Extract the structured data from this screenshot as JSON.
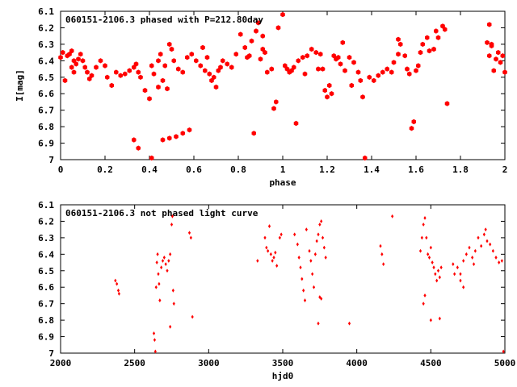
{
  "chart_data": [
    {
      "type": "scatter",
      "title": "060151-2106.3 phased with P=212.80day",
      "xlabel": "phase",
      "ylabel": "I[mag]",
      "xlim": [
        0,
        2
      ],
      "ylim": [
        6.1,
        7
      ],
      "y_inverted": true,
      "x_ticks": [
        "0",
        "0.2",
        "0.4",
        "0.6",
        "0.8",
        "1",
        "1.2",
        "1.4",
        "1.6",
        "1.8",
        "2"
      ],
      "y_ticks": [
        "6.1",
        "6.2",
        "6.3",
        "6.4",
        "6.5",
        "6.6",
        "6.7",
        "6.8",
        "6.9",
        "7"
      ],
      "marker_color": "#ff0000",
      "marker": "filled-hexagon",
      "grid": false,
      "legend": "none",
      "series": [
        {
          "points": [
            [
              0.0,
              6.38
            ],
            [
              0.01,
              6.35
            ],
            [
              0.02,
              6.52
            ],
            [
              0.03,
              6.37
            ],
            [
              0.04,
              6.36
            ],
            [
              0.05,
              6.34
            ],
            [
              0.06,
              6.4
            ],
            [
              0.07,
              6.42
            ],
            [
              0.08,
              6.39
            ],
            [
              0.09,
              6.36
            ],
            [
              0.1,
              6.4
            ],
            [
              0.11,
              6.44
            ],
            [
              0.12,
              6.47
            ],
            [
              0.13,
              6.51
            ],
            [
              0.14,
              6.49
            ],
            [
              0.16,
              6.44
            ],
            [
              0.18,
              6.4
            ],
            [
              0.2,
              6.43
            ],
            [
              0.21,
              6.5
            ],
            [
              0.23,
              6.55
            ],
            [
              0.25,
              6.47
            ],
            [
              0.27,
              6.49
            ],
            [
              0.29,
              6.48
            ],
            [
              0.31,
              6.46
            ],
            [
              0.33,
              6.44
            ],
            [
              0.34,
              6.42
            ],
            [
              0.35,
              6.47
            ],
            [
              0.36,
              6.5
            ],
            [
              0.38,
              6.58
            ],
            [
              0.4,
              6.63
            ],
            [
              0.41,
              6.43
            ],
            [
              0.42,
              6.48
            ],
            [
              0.44,
              6.56
            ],
            [
              0.46,
              6.52
            ],
            [
              0.48,
              6.57
            ],
            [
              0.33,
              6.88
            ],
            [
              0.35,
              6.93
            ],
            [
              0.41,
              6.99
            ],
            [
              0.46,
              6.88
            ],
            [
              0.49,
              6.87
            ],
            [
              0.52,
              6.86
            ],
            [
              0.55,
              6.84
            ],
            [
              0.44,
              6.4
            ],
            [
              0.45,
              6.36
            ],
            [
              0.47,
              6.43
            ],
            [
              0.49,
              6.3
            ],
            [
              0.5,
              6.33
            ],
            [
              0.51,
              6.4
            ],
            [
              0.53,
              6.45
            ],
            [
              0.55,
              6.47
            ],
            [
              0.57,
              6.38
            ],
            [
              0.59,
              6.36
            ],
            [
              0.61,
              6.4
            ],
            [
              0.63,
              6.43
            ],
            [
              0.65,
              6.46
            ],
            [
              0.67,
              6.48
            ],
            [
              0.69,
              6.5
            ],
            [
              0.71,
              6.46
            ],
            [
              0.73,
              6.4
            ],
            [
              0.75,
              6.42
            ],
            [
              0.77,
              6.44
            ],
            [
              0.79,
              6.36
            ],
            [
              0.81,
              6.24
            ],
            [
              0.83,
              6.32
            ],
            [
              0.84,
              6.38
            ],
            [
              0.86,
              6.28
            ],
            [
              0.88,
              6.22
            ],
            [
              0.89,
              6.17
            ],
            [
              0.91,
              6.25
            ],
            [
              0.92,
              6.35
            ],
            [
              0.93,
              6.47
            ],
            [
              0.95,
              6.45
            ],
            [
              0.96,
              6.69
            ],
            [
              0.97,
              6.65
            ],
            [
              0.98,
              6.2
            ],
            [
              1.0,
              6.12
            ],
            [
              1.01,
              6.43
            ],
            [
              1.02,
              6.45
            ],
            [
              1.03,
              6.47
            ],
            [
              1.04,
              6.46
            ],
            [
              1.06,
              6.78
            ],
            [
              1.07,
              6.4
            ],
            [
              1.09,
              6.38
            ],
            [
              1.11,
              6.37
            ],
            [
              1.13,
              6.33
            ],
            [
              1.15,
              6.35
            ],
            [
              1.17,
              6.36
            ],
            [
              1.18,
              6.45
            ],
            [
              1.19,
              6.58
            ],
            [
              1.2,
              6.62
            ],
            [
              1.21,
              6.55
            ],
            [
              1.22,
              6.6
            ],
            [
              1.23,
              6.37
            ],
            [
              1.24,
              6.39
            ],
            [
              1.26,
              6.42
            ],
            [
              1.28,
              6.46
            ],
            [
              1.3,
              6.38
            ],
            [
              1.32,
              6.41
            ],
            [
              1.34,
              6.47
            ],
            [
              1.35,
              6.52
            ],
            [
              1.36,
              6.62
            ],
            [
              1.37,
              6.99
            ],
            [
              1.39,
              6.5
            ],
            [
              1.41,
              6.52
            ],
            [
              1.43,
              6.49
            ],
            [
              1.45,
              6.47
            ],
            [
              1.47,
              6.45
            ],
            [
              1.49,
              6.47
            ],
            [
              1.5,
              6.41
            ],
            [
              1.52,
              6.36
            ],
            [
              1.53,
              6.3
            ],
            [
              1.55,
              6.37
            ],
            [
              1.56,
              6.45
            ],
            [
              1.57,
              6.48
            ],
            [
              1.58,
              6.81
            ],
            [
              1.59,
              6.77
            ],
            [
              1.6,
              6.46
            ],
            [
              1.61,
              6.43
            ],
            [
              1.62,
              6.35
            ],
            [
              1.63,
              6.3
            ],
            [
              1.65,
              6.26
            ],
            [
              1.66,
              6.34
            ],
            [
              1.68,
              6.33
            ],
            [
              1.69,
              6.22
            ],
            [
              1.7,
              6.26
            ],
            [
              1.72,
              6.19
            ],
            [
              1.73,
              6.21
            ],
            [
              1.74,
              6.66
            ],
            [
              0.87,
              6.84
            ],
            [
              0.58,
              6.82
            ],
            [
              1.52,
              6.27
            ],
            [
              1.92,
              6.29
            ],
            [
              1.93,
              6.18
            ],
            [
              1.94,
              6.3
            ],
            [
              1.95,
              6.46
            ],
            [
              1.96,
              6.39
            ],
            [
              1.97,
              6.35
            ],
            [
              1.98,
              6.41
            ],
            [
              1.99,
              6.37
            ],
            [
              2.0,
              6.47
            ],
            [
              1.93,
              6.37
            ],
            [
              1.94,
              6.31
            ],
            [
              0.05,
              6.44
            ],
            [
              0.06,
              6.47
            ],
            [
              0.9,
              6.39
            ],
            [
              0.91,
              6.33
            ],
            [
              1.1,
              6.48
            ],
            [
              1.25,
              6.38
            ],
            [
              1.27,
              6.29
            ],
            [
              1.31,
              6.55
            ],
            [
              1.05,
              6.44
            ],
            [
              1.16,
              6.45
            ],
            [
              0.64,
              6.32
            ],
            [
              0.66,
              6.38
            ],
            [
              0.68,
              6.52
            ],
            [
              0.7,
              6.56
            ],
            [
              0.72,
              6.44
            ],
            [
              0.85,
              6.37
            ]
          ]
        }
      ]
    },
    {
      "type": "scatter",
      "title": "060151-2106.3 not phased light curve",
      "xlabel": "hjd0",
      "ylabel": "",
      "xlim": [
        2000,
        5000
      ],
      "ylim": [
        6.1,
        7
      ],
      "y_inverted": true,
      "x_ticks": [
        "2000",
        "2500",
        "3000",
        "3500",
        "4000",
        "4500",
        "5000"
      ],
      "y_ticks": [
        "6.1",
        "6.2",
        "6.3",
        "6.4",
        "6.5",
        "6.6",
        "6.7",
        "6.8",
        "6.9",
        "7"
      ],
      "marker_color": "#ff0000",
      "marker": "small-diamond",
      "grid": false,
      "legend": "none",
      "series": [
        {
          "points": [
            [
              2370,
              6.56
            ],
            [
              2380,
              6.58
            ],
            [
              2390,
              6.62
            ],
            [
              2395,
              6.64
            ],
            [
              2630,
              6.88
            ],
            [
              2635,
              6.92
            ],
            [
              2640,
              6.99
            ],
            [
              2645,
              6.6
            ],
            [
              2650,
              6.45
            ],
            [
              2655,
              6.4
            ],
            [
              2660,
              6.52
            ],
            [
              2665,
              6.58
            ],
            [
              2670,
              6.68
            ],
            [
              2680,
              6.48
            ],
            [
              2690,
              6.44
            ],
            [
              2700,
              6.42
            ],
            [
              2710,
              6.46
            ],
            [
              2720,
              6.5
            ],
            [
              2730,
              6.44
            ],
            [
              2740,
              6.4
            ],
            [
              2750,
              6.22
            ],
            [
              2755,
              6.17
            ],
            [
              2760,
              6.62
            ],
            [
              2765,
              6.7
            ],
            [
              2740,
              6.84
            ],
            [
              2870,
              6.27
            ],
            [
              2880,
              6.3
            ],
            [
              2890,
              6.78
            ],
            [
              3330,
              6.44
            ],
            [
              3380,
              6.3
            ],
            [
              3390,
              6.36
            ],
            [
              3400,
              6.38
            ],
            [
              3410,
              6.23
            ],
            [
              3420,
              6.4
            ],
            [
              3430,
              6.44
            ],
            [
              3440,
              6.42
            ],
            [
              3450,
              6.39
            ],
            [
              3460,
              6.47
            ],
            [
              3480,
              6.3
            ],
            [
              3490,
              6.28
            ],
            [
              3580,
              6.28
            ],
            [
              3600,
              6.34
            ],
            [
              3610,
              6.42
            ],
            [
              3620,
              6.48
            ],
            [
              3630,
              6.55
            ],
            [
              3640,
              6.62
            ],
            [
              3650,
              6.68
            ],
            [
              3660,
              6.25
            ],
            [
              3680,
              6.38
            ],
            [
              3690,
              6.44
            ],
            [
              3700,
              6.52
            ],
            [
              3710,
              6.6
            ],
            [
              3720,
              6.4
            ],
            [
              3730,
              6.32
            ],
            [
              3740,
              6.28
            ],
            [
              3750,
              6.22
            ],
            [
              3760,
              6.2
            ],
            [
              3770,
              6.3
            ],
            [
              3780,
              6.36
            ],
            [
              3790,
              6.42
            ],
            [
              3740,
              6.82
            ],
            [
              3750,
              6.66
            ],
            [
              3760,
              6.67
            ],
            [
              3950,
              6.82
            ],
            [
              4160,
              6.35
            ],
            [
              4170,
              6.4
            ],
            [
              4180,
              6.46
            ],
            [
              4240,
              6.17
            ],
            [
              4430,
              6.38
            ],
            [
              4440,
              6.3
            ],
            [
              4450,
              6.22
            ],
            [
              4460,
              6.18
            ],
            [
              4470,
              6.3
            ],
            [
              4480,
              6.4
            ],
            [
              4490,
              6.42
            ],
            [
              4500,
              6.36
            ],
            [
              4510,
              6.45
            ],
            [
              4520,
              6.48
            ],
            [
              4530,
              6.52
            ],
            [
              4540,
              6.56
            ],
            [
              4550,
              6.5
            ],
            [
              4560,
              6.54
            ],
            [
              4570,
              6.48
            ],
            [
              4560,
              6.79
            ],
            [
              4500,
              6.8
            ],
            [
              4450,
              6.7
            ],
            [
              4460,
              6.65
            ],
            [
              4680,
              6.48
            ],
            [
              4700,
              6.52
            ],
            [
              4720,
              6.44
            ],
            [
              4740,
              6.4
            ],
            [
              4760,
              6.36
            ],
            [
              4780,
              6.42
            ],
            [
              4800,
              6.38
            ],
            [
              4820,
              6.3
            ],
            [
              4840,
              6.35
            ],
            [
              4860,
              6.28
            ],
            [
              4870,
              6.25
            ],
            [
              4880,
              6.32
            ],
            [
              4900,
              6.34
            ],
            [
              4920,
              6.38
            ],
            [
              4940,
              6.42
            ],
            [
              4960,
              6.45
            ],
            [
              4980,
              6.44
            ],
            [
              4990,
              6.99
            ],
            [
              4700,
              6.56
            ],
            [
              4720,
              6.6
            ],
            [
              4660,
              6.52
            ],
            [
              4650,
              6.46
            ],
            [
              4790,
              6.46
            ]
          ]
        }
      ]
    }
  ]
}
